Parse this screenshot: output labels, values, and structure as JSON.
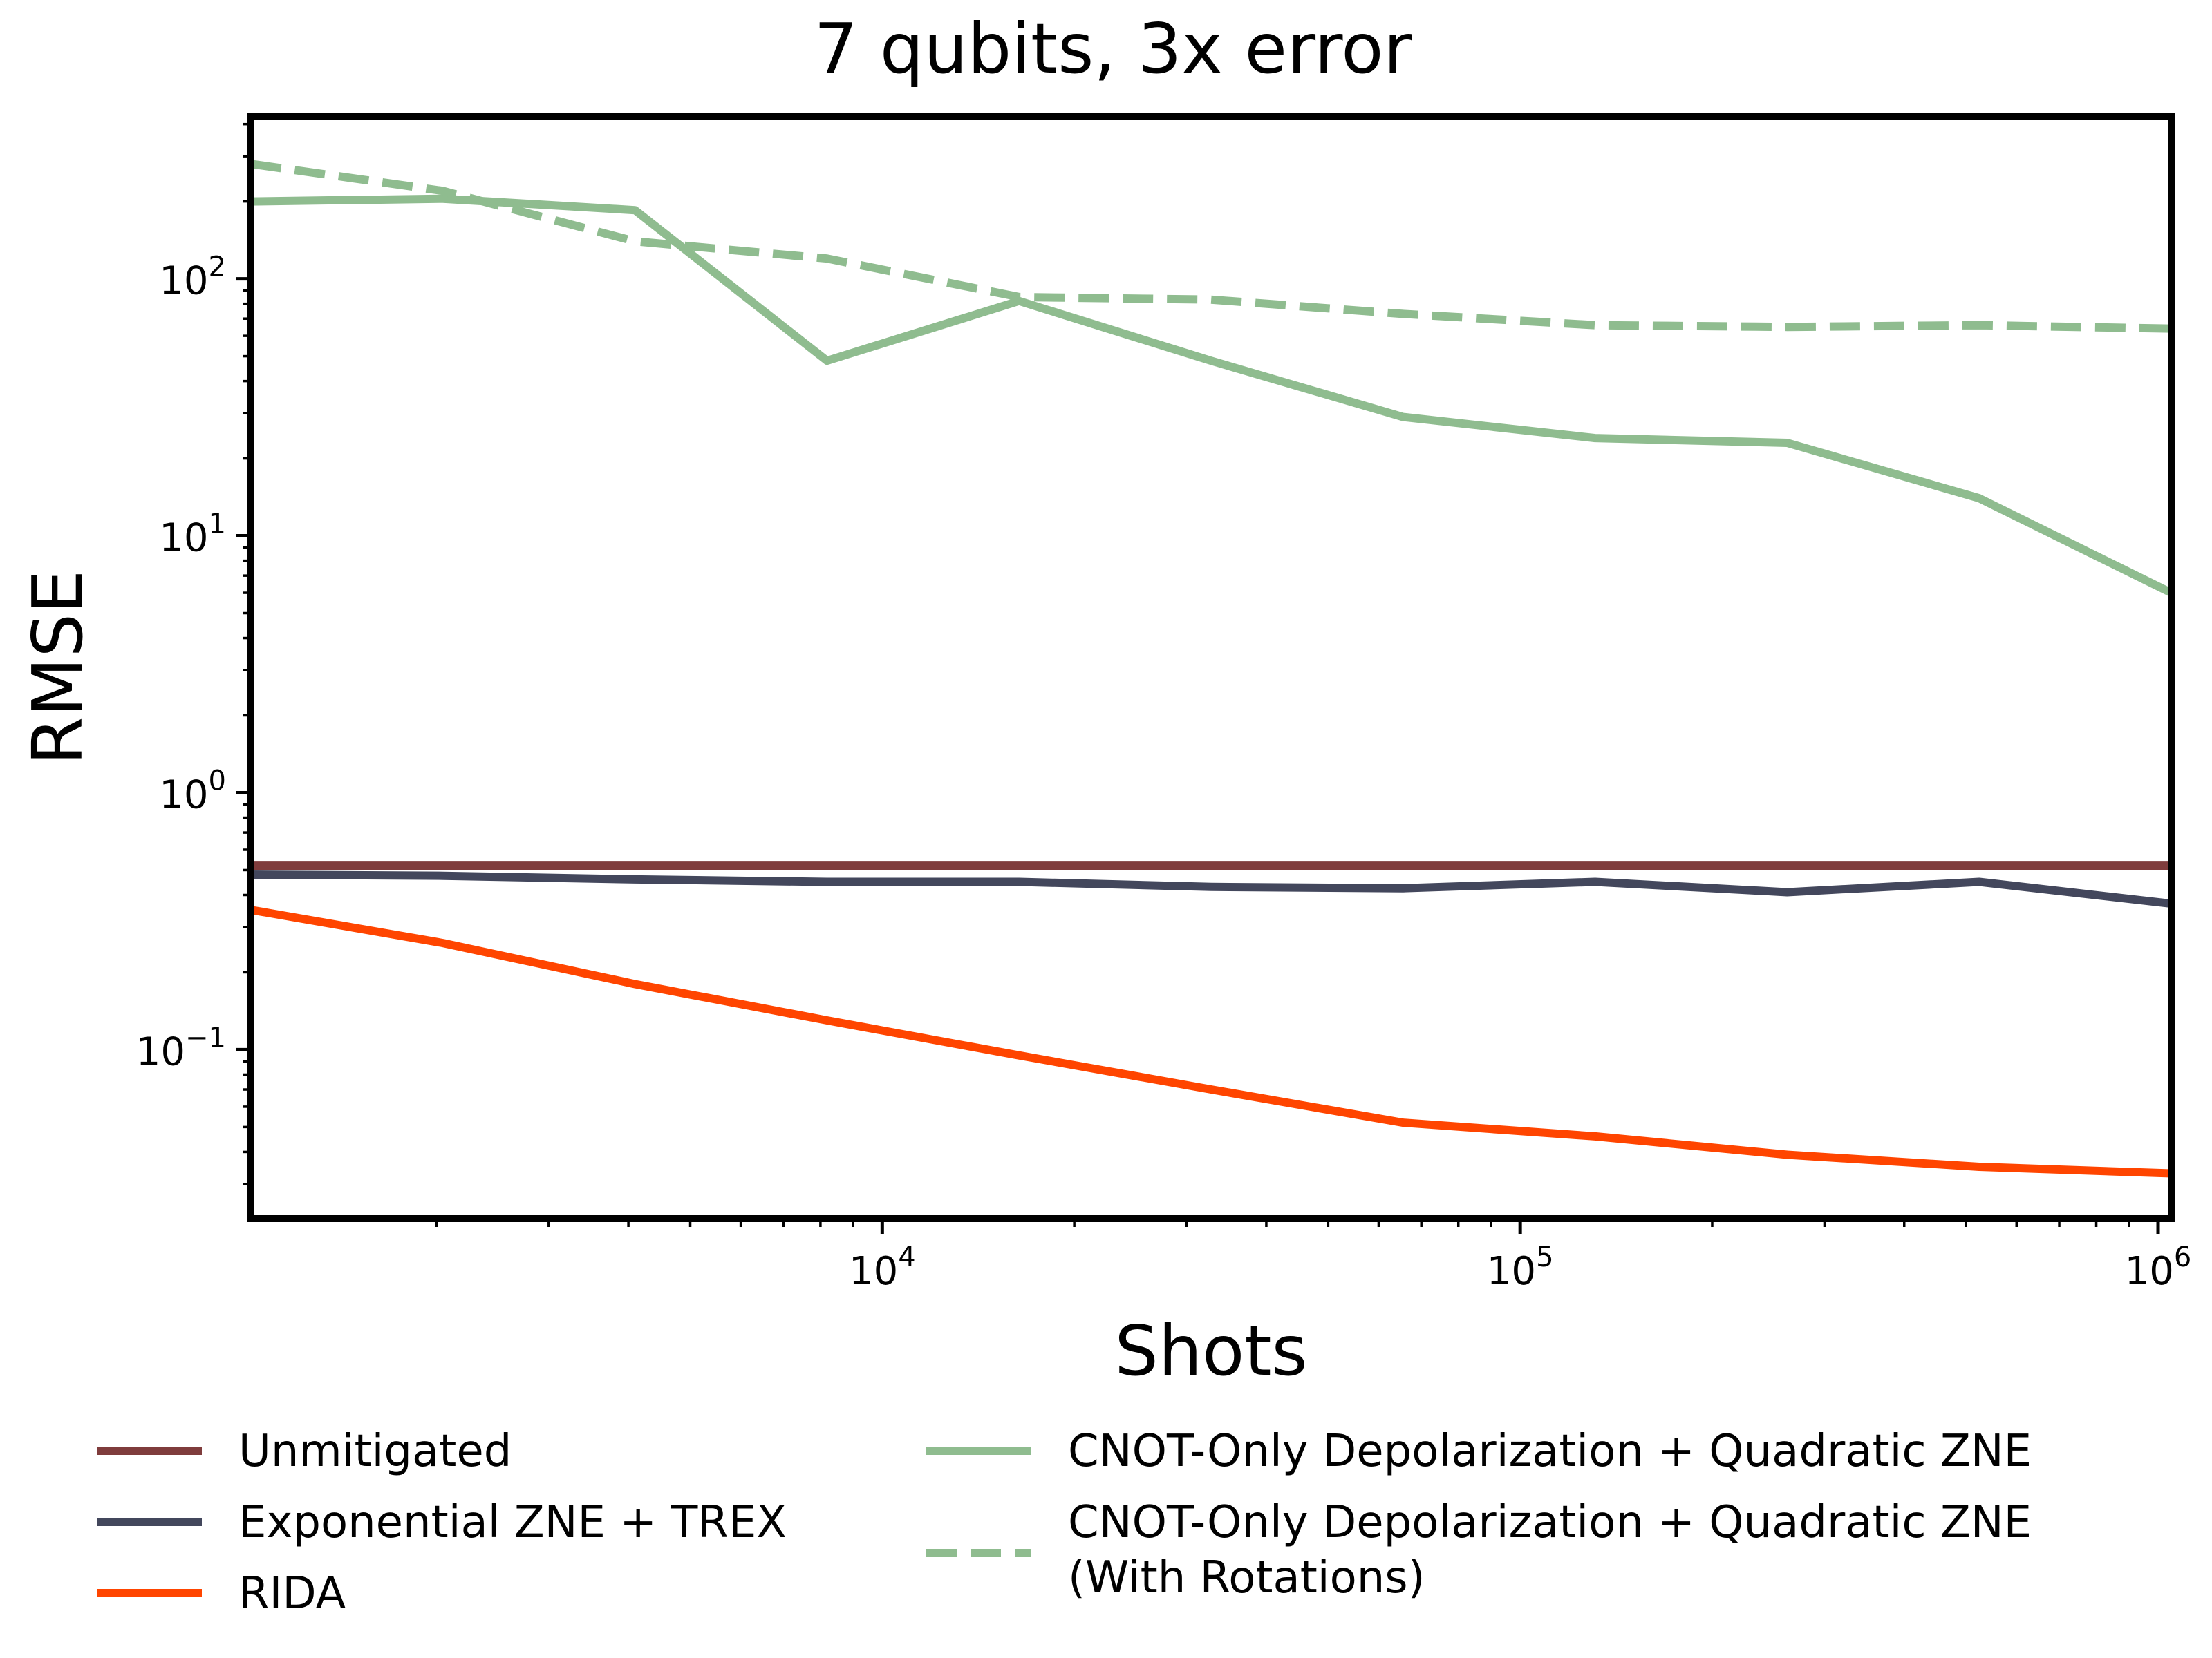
{
  "chart_data": {
    "type": "line",
    "title": "7 qubits, 3x error",
    "xlabel": "Shots",
    "ylabel": "RMSE",
    "xscale": "log",
    "yscale": "log",
    "xlim": [
      1024,
      1048576
    ],
    "ylim": [
      0.022,
      430
    ],
    "grid": false,
    "legend_position": "bottom, outside plot, two columns",
    "x_ticks": [
      {
        "value": 10000,
        "base": "10",
        "exp": "4"
      },
      {
        "value": 100000,
        "base": "10",
        "exp": "5"
      },
      {
        "value": 1000000,
        "base": "10",
        "exp": "6"
      }
    ],
    "y_ticks": [
      {
        "value": 0.1,
        "base": "10",
        "exp": "−1"
      },
      {
        "value": 1,
        "base": "10",
        "exp": "0"
      },
      {
        "value": 10,
        "base": "10",
        "exp": "1"
      },
      {
        "value": 100,
        "base": "10",
        "exp": "2"
      }
    ],
    "x": [
      1024,
      2048,
      4096,
      8192,
      16384,
      32768,
      65536,
      131072,
      262144,
      524288,
      1048576
    ],
    "series": [
      {
        "name": "Unmitigated",
        "color": "#7f3c3c",
        "dash": "solid",
        "values": [
          0.52,
          0.52,
          0.52,
          0.52,
          0.52,
          0.52,
          0.52,
          0.52,
          0.52,
          0.52,
          0.52
        ]
      },
      {
        "name": "Exponential ZNE + TREX",
        "color": "#43475c",
        "dash": "solid",
        "values": [
          0.48,
          0.475,
          0.46,
          0.45,
          0.45,
          0.43,
          0.425,
          0.45,
          0.41,
          0.45,
          0.37
        ]
      },
      {
        "name": "RIDA",
        "color": "#ff4500",
        "dash": "solid",
        "values": [
          0.35,
          0.26,
          0.18,
          0.13,
          0.095,
          0.07,
          0.052,
          0.046,
          0.039,
          0.035,
          0.033
        ]
      },
      {
        "name": "CNOT-Only Depolarization + Quadratic ZNE",
        "color": "#8fbc8f",
        "dash": "solid",
        "values": [
          200,
          205,
          185,
          48,
          82,
          48,
          29,
          24,
          23,
          14,
          6
        ]
      },
      {
        "name": "CNOT-Only Depolarization + Quadratic ZNE",
        "name_line2": "(With Rotations)",
        "color": "#8fbc8f",
        "dash": "dashed",
        "values": [
          280,
          220,
          140,
          120,
          85,
          83,
          73,
          66,
          65,
          66,
          64
        ]
      }
    ]
  }
}
